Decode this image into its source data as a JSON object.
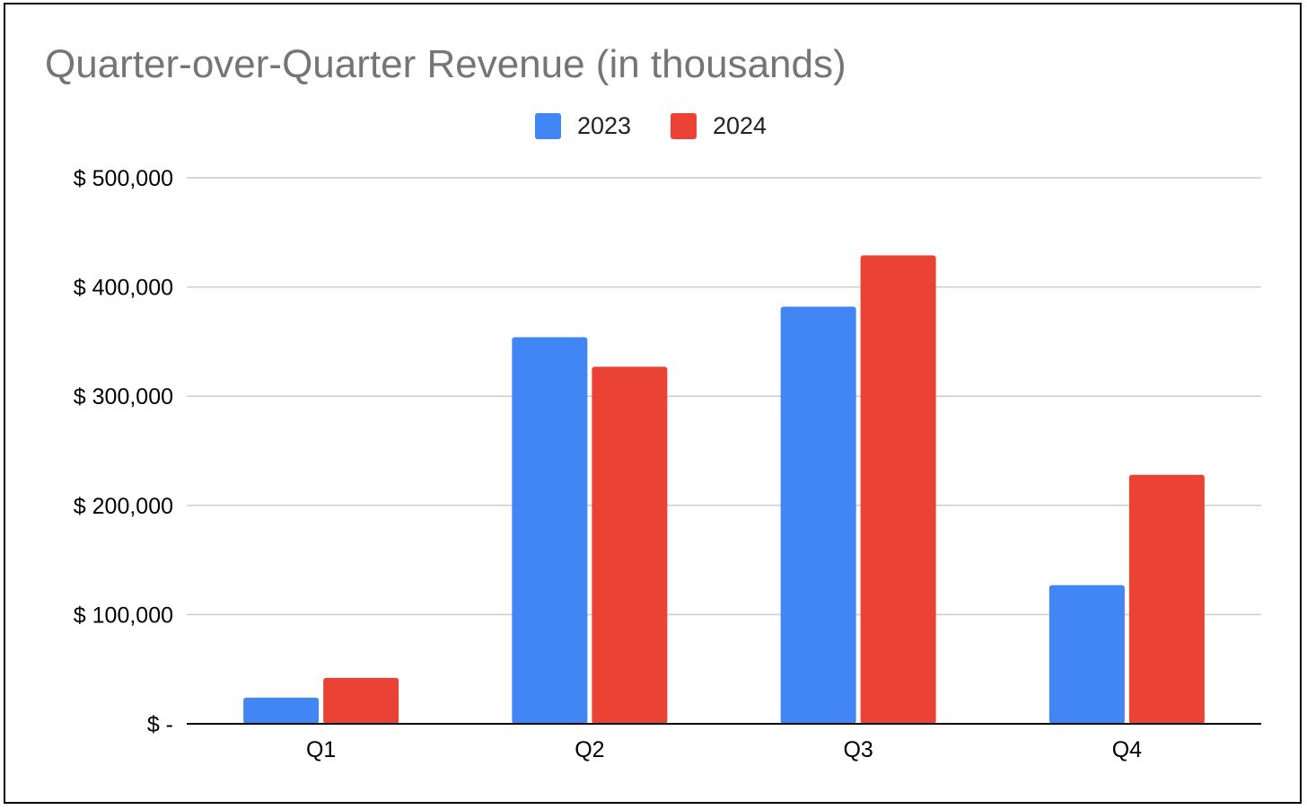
{
  "chart_data": {
    "type": "bar",
    "title": "Quarter-over-Quarter Revenue (in thousands)",
    "xlabel": "",
    "ylabel": "",
    "categories": [
      "Q1",
      "Q2",
      "Q3",
      "Q4"
    ],
    "series": [
      {
        "name": "2023",
        "color": "#4285f4",
        "values": [
          24000,
          354000,
          382000,
          127000
        ]
      },
      {
        "name": "2024",
        "color": "#ea4335",
        "values": [
          42000,
          327000,
          429000,
          228000
        ]
      }
    ],
    "ylim": [
      0,
      500000
    ],
    "yticks": [
      0,
      100000,
      200000,
      300000,
      400000,
      500000
    ],
    "ytick_labels": [
      "$ -",
      "$ 100,000",
      "$ 200,000",
      "$ 300,000",
      "$ 400,000",
      "$ 500,000"
    ],
    "legend_position": "top-center",
    "grid": true,
    "gridline_color": "#cccccc",
    "axis_color": "#000000"
  }
}
